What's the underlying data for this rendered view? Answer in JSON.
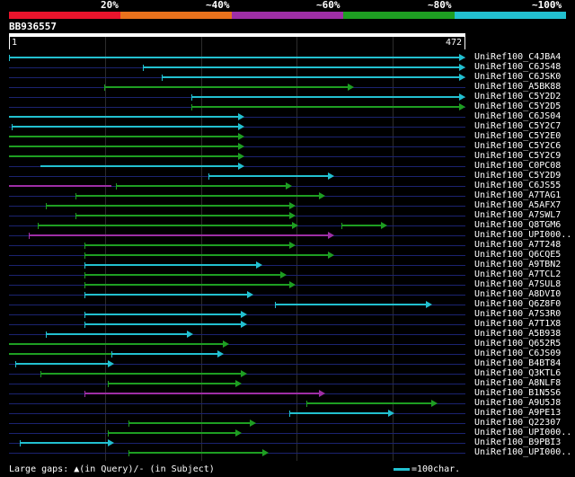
{
  "query": {
    "id": "BB936557",
    "start": "1",
    "end": "472",
    "length": 472
  },
  "percent_labels": [
    "20%",
    "~40%",
    "~60%",
    "~80%",
    "~100%"
  ],
  "color_scale": [
    "#e8142c",
    "#e8721c",
    "#9e2ea6",
    "#1e9e22",
    "#22c0d0"
  ],
  "hits": [
    {
      "name": "UniRef100_C4JBA4",
      "color": "#22c0d0",
      "start": 1,
      "end": 472,
      "ticks": [
        1
      ]
    },
    {
      "name": "UniRef100_C6JS48",
      "color": "#22c0d0",
      "start": 141,
      "end": 472,
      "ticks": [
        141
      ]
    },
    {
      "name": "UniRef100_C6JSK0",
      "color": "#22c0d0",
      "start": 161,
      "end": 472,
      "ticks": [
        161
      ]
    },
    {
      "name": "UniRef100_A5BK88",
      "color": "#1e9e22",
      "start": 101,
      "end": 355,
      "ticks": [
        101
      ]
    },
    {
      "name": "UniRef100_C5Y2D2",
      "color": "#22c0d0",
      "start": 192,
      "end": 472,
      "ticks": [
        192
      ]
    },
    {
      "name": "UniRef100_C5Y2D5",
      "color": "#1e9e22",
      "start": 192,
      "end": 472,
      "ticks": [
        192
      ]
    },
    {
      "name": "UniRef100_C6JS04",
      "color": "#22c0d0",
      "start": 1,
      "end": 241
    },
    {
      "name": "UniRef100_C5Y2C7",
      "color": "#22c0d0",
      "start": 4,
      "end": 241,
      "ticks": [
        4
      ]
    },
    {
      "name": "UniRef100_C5Y2E0",
      "color": "#1e9e22",
      "start": 1,
      "end": 241
    },
    {
      "name": "UniRef100_C5Y2C6",
      "color": "#1e9e22",
      "start": 1,
      "end": 241
    },
    {
      "name": "UniRef100_C5Y2C9",
      "color": "#1e9e22",
      "start": 1,
      "end": 241
    },
    {
      "name": "UniRef100_C0PC08",
      "color": "#22c0d0",
      "start": 34,
      "end": 241
    },
    {
      "name": "UniRef100_C5Y2D9",
      "color": "#22c0d0",
      "start": 210,
      "end": 335,
      "ticks": [
        210
      ]
    },
    {
      "name": "UniRef100_C6JS55",
      "color": "#1e9e22",
      "start": 113,
      "end": 291,
      "ticks": [
        113
      ],
      "segments": [
        {
          "start": 1,
          "end": 108,
          "color": "#9e2ea6"
        }
      ]
    },
    {
      "name": "UniRef100_A7TAG1",
      "color": "#1e9e22",
      "start": 71,
      "end": 325,
      "ticks": [
        71
      ]
    },
    {
      "name": "UniRef100_A5AFX7",
      "color": "#1e9e22",
      "start": 40,
      "end": 294,
      "ticks": [
        40
      ]
    },
    {
      "name": "UniRef100_A7SWL7",
      "color": "#1e9e22",
      "start": 71,
      "end": 294,
      "ticks": [
        71
      ]
    },
    {
      "name": "UniRef100_Q8TGM6",
      "color": "#1e9e22",
      "start": 31,
      "end": 297,
      "ticks": [
        31
      ],
      "segments": [
        {
          "start": 349,
          "end": 390,
          "color": "#1e9e22",
          "ticks": [
            349
          ],
          "arrow": true
        }
      ]
    },
    {
      "name": "UniRef100_UPI000..",
      "color": "#9e2ea6",
      "start": 22,
      "end": 335,
      "ticks": [
        22
      ]
    },
    {
      "name": "UniRef100_A7T248",
      "color": "#1e9e22",
      "start": 80,
      "end": 294,
      "ticks": [
        80
      ]
    },
    {
      "name": "UniRef100_Q6CQE5",
      "color": "#1e9e22",
      "start": 80,
      "end": 335,
      "ticks": [
        80
      ]
    },
    {
      "name": "UniRef100_A9TBN2",
      "color": "#22c0d0",
      "start": 80,
      "end": 260,
      "ticks": [
        80
      ]
    },
    {
      "name": "UniRef100_A7TCL2",
      "color": "#1e9e22",
      "start": 80,
      "end": 285,
      "ticks": [
        80
      ]
    },
    {
      "name": "UniRef100_A7SUL8",
      "color": "#1e9e22",
      "start": 80,
      "end": 294,
      "ticks": [
        80
      ]
    },
    {
      "name": "UniRef100_A8DVI0",
      "color": "#22c0d0",
      "start": 80,
      "end": 250,
      "ticks": [
        80
      ]
    },
    {
      "name": "UniRef100_Q6Z8F0",
      "color": "#22c0d0",
      "start": 279,
      "end": 437,
      "ticks": [
        279
      ]
    },
    {
      "name": "UniRef100_A7S3R0",
      "color": "#22c0d0",
      "start": 80,
      "end": 244,
      "ticks": [
        80
      ]
    },
    {
      "name": "UniRef100_A7T1X8",
      "color": "#22c0d0",
      "start": 80,
      "end": 244,
      "ticks": [
        80
      ]
    },
    {
      "name": "UniRef100_A5B938",
      "color": "#22c0d0",
      "start": 40,
      "end": 187,
      "ticks": [
        40
      ]
    },
    {
      "name": "UniRef100_Q652R5",
      "color": "#1e9e22",
      "start": 1,
      "end": 225
    },
    {
      "name": "UniRef100_C6JS09",
      "color": "#22c0d0",
      "start": 108,
      "end": 219,
      "ticks": [
        108
      ],
      "segments": [
        {
          "start": 1,
          "end": 140,
          "color": "#1e9e22"
        }
      ]
    },
    {
      "name": "UniRef100_B4BT84",
      "color": "#22c0d0",
      "start": 8,
      "end": 104,
      "ticks": [
        8
      ]
    },
    {
      "name": "UniRef100_Q3KTL6",
      "color": "#1e9e22",
      "start": 34,
      "end": 244,
      "ticks": [
        34
      ]
    },
    {
      "name": "UniRef100_A8NLF8",
      "color": "#1e9e22",
      "start": 104,
      "end": 238,
      "ticks": [
        104
      ]
    },
    {
      "name": "UniRef100_B1N5S6",
      "color": "#9e2ea6",
      "start": 80,
      "end": 325,
      "ticks": [
        80
      ]
    },
    {
      "name": "UniRef100_A9U5J8",
      "color": "#1e9e22",
      "start": 312,
      "end": 443,
      "ticks": [
        312
      ]
    },
    {
      "name": "UniRef100_A9PE13",
      "color": "#22c0d0",
      "start": 294,
      "end": 398,
      "ticks": [
        294
      ]
    },
    {
      "name": "UniRef100_Q22307",
      "color": "#1e9e22",
      "start": 126,
      "end": 253,
      "ticks": [
        126
      ]
    },
    {
      "name": "UniRef100_UPI000..",
      "color": "#1e9e22",
      "start": 104,
      "end": 238,
      "ticks": [
        104
      ]
    },
    {
      "name": "UniRef100_B9PBI3",
      "color": "#22c0d0",
      "start": 12,
      "end": 104,
      "ticks": [
        12
      ]
    },
    {
      "name": "UniRef100_UPI000..",
      "color": "#1e9e22",
      "start": 126,
      "end": 266,
      "ticks": [
        126
      ]
    }
  ],
  "footer": {
    "note": "Large gaps: ▲(in Query)/- (in Subject)",
    "scale_label": "=100char."
  }
}
